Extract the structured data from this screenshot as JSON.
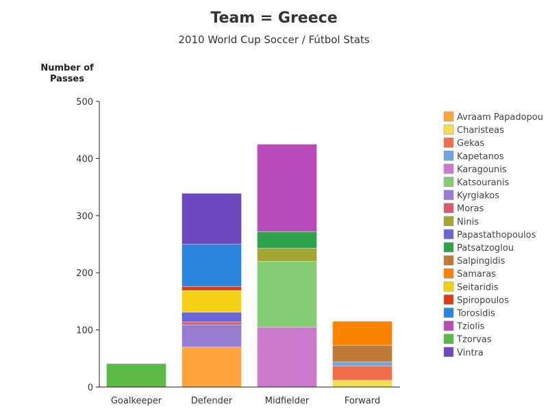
{
  "chart_data": {
    "type": "bar",
    "stacked": true,
    "title": "Team = Greece",
    "subtitle": "2010 World Cup Soccer / Fútbol Stats",
    "ylabel": [
      "Number of",
      "Passes"
    ],
    "xlabel": "",
    "ylim": [
      0,
      500
    ],
    "yticks": [
      0,
      100,
      200,
      300,
      400,
      500
    ],
    "grid": false,
    "legend_position": "right",
    "categories": [
      "Goalkeeper",
      "Defender",
      "Midfielder",
      "Forward"
    ],
    "series": [
      {
        "name": "Avraam Papadopou",
        "color": "#FFA43A",
        "values": [
          0,
          70,
          0,
          0
        ]
      },
      {
        "name": "Charisteas",
        "color": "#F2DE52",
        "values": [
          0,
          0,
          0,
          12
        ]
      },
      {
        "name": "Gekas",
        "color": "#F06E4A",
        "values": [
          0,
          0,
          0,
          25
        ]
      },
      {
        "name": "Kapetanos",
        "color": "#6AA6E2",
        "values": [
          0,
          0,
          0,
          7
        ]
      },
      {
        "name": "Karagounis",
        "color": "#CC7ACB",
        "values": [
          0,
          0,
          105,
          0
        ]
      },
      {
        "name": "Katsouranis",
        "color": "#84CC74",
        "values": [
          0,
          0,
          115,
          0
        ]
      },
      {
        "name": "Kyrgiakos",
        "color": "#967DD3",
        "values": [
          0,
          39,
          0,
          0
        ]
      },
      {
        "name": "Moras",
        "color": "#DA5B6B",
        "values": [
          0,
          5,
          0,
          0
        ]
      },
      {
        "name": "Ninis",
        "color": "#A2A632",
        "values": [
          0,
          0,
          23,
          0
        ]
      },
      {
        "name": "Papastathopoulos",
        "color": "#6B66D8",
        "values": [
          0,
          17,
          0,
          0
        ]
      },
      {
        "name": "Patsatzoglou",
        "color": "#2EA349",
        "values": [
          0,
          0,
          29,
          0
        ]
      },
      {
        "name": "Salpingidis",
        "color": "#BF7A37",
        "values": [
          0,
          0,
          0,
          29
        ]
      },
      {
        "name": "Samaras",
        "color": "#FA8400",
        "values": [
          0,
          0,
          0,
          42
        ]
      },
      {
        "name": "Seitaridis",
        "color": "#F2D117",
        "values": [
          0,
          38,
          0,
          0
        ]
      },
      {
        "name": "Spiropoulos",
        "color": "#DE3C16",
        "values": [
          0,
          7,
          0,
          0
        ]
      },
      {
        "name": "Torosidis",
        "color": "#2B84DC",
        "values": [
          0,
          74,
          0,
          0
        ]
      },
      {
        "name": "Tziolis",
        "color": "#B84BB9",
        "values": [
          0,
          0,
          153,
          0
        ]
      },
      {
        "name": "Tzorvas",
        "color": "#5CB946",
        "values": [
          41,
          0,
          0,
          0
        ]
      },
      {
        "name": "Vintra",
        "color": "#6C4ABE",
        "values": [
          0,
          89,
          0,
          0
        ]
      }
    ]
  }
}
